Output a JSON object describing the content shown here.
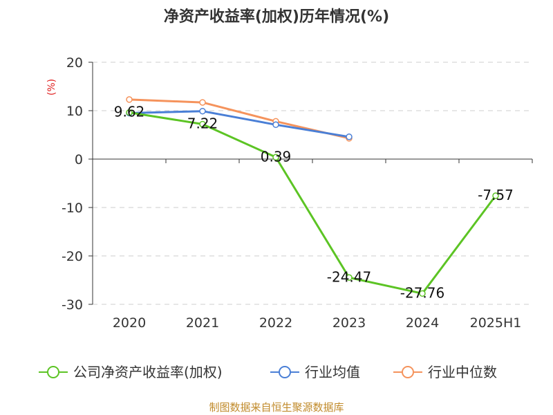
{
  "chart_data": {
    "type": "line",
    "title": "净资产收益率(加权)历年情况(%)",
    "ylabel": "(%)",
    "categories": [
      "2020",
      "2021",
      "2022",
      "2023",
      "2024",
      "2025H1"
    ],
    "ylim": [
      -30,
      20
    ],
    "yticks": [
      "20",
      "10",
      "0",
      "-10",
      "-20",
      "-30"
    ],
    "grid": true,
    "legend_position": "bottom",
    "series": [
      {
        "name": "公司净资产收益率(加权)",
        "color": "#5cc424",
        "values": [
          9.62,
          7.22,
          0.39,
          -24.47,
          -27.76,
          -7.57
        ],
        "labels": [
          "9.62",
          "7.22",
          "0.39",
          "-24.47",
          "-27.76",
          "-7.57"
        ]
      },
      {
        "name": "行业均值",
        "color": "#4a7fd6",
        "values": [
          9.5,
          9.9,
          7.1,
          4.6,
          null,
          null
        ]
      },
      {
        "name": "行业中位数",
        "color": "#f5935c",
        "values": [
          12.3,
          11.7,
          7.8,
          4.3,
          null,
          null
        ]
      }
    ]
  },
  "source": "制图数据来自恒生聚源数据库"
}
